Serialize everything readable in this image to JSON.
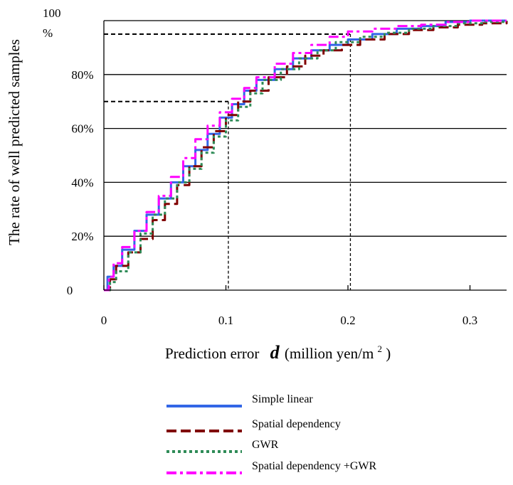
{
  "chart_data": {
    "type": "line",
    "title": "",
    "xlabel_prefix": "Prediction error",
    "xlabel_symbol": "d",
    "xlabel_unit_open": "(million yen/m",
    "xlabel_unit_sup": "2",
    "xlabel_unit_close": ")",
    "ylabel": "The rate of well predicted samples",
    "xlim": [
      0,
      0.33
    ],
    "ylim": [
      0,
      100
    ],
    "x_ticks": [
      "0",
      "0.1",
      "0.2",
      "0.3"
    ],
    "y_ticks": [
      "0",
      "20%",
      "40%",
      "60%",
      "80%"
    ],
    "y_top_label": "100",
    "y_top_label_pct": "%",
    "grid": "horizontal",
    "legend_position": "below",
    "reference_lines": [
      {
        "x": 0.102,
        "y": 70
      },
      {
        "x": 0.202,
        "y": 95
      }
    ],
    "series": [
      {
        "name": "Simple linear",
        "color": "#3366e6",
        "style": "solid",
        "x": [
          0.0,
          0.003,
          0.008,
          0.015,
          0.025,
          0.035,
          0.045,
          0.055,
          0.065,
          0.075,
          0.085,
          0.095,
          0.105,
          0.115,
          0.125,
          0.14,
          0.155,
          0.17,
          0.185,
          0.2,
          0.22,
          0.24,
          0.26,
          0.28,
          0.3,
          0.33
        ],
        "y": [
          0,
          5,
          9,
          15,
          22,
          28,
          34,
          40,
          46,
          52,
          58,
          64,
          69,
          74,
          78,
          82,
          86,
          89,
          91,
          93,
          95,
          97,
          98,
          99.5,
          100,
          100
        ]
      },
      {
        "name": "Spatial dependency",
        "color": "#800000",
        "style": "dashed",
        "x": [
          0.0,
          0.005,
          0.01,
          0.02,
          0.03,
          0.04,
          0.05,
          0.06,
          0.07,
          0.08,
          0.09,
          0.1,
          0.11,
          0.12,
          0.135,
          0.15,
          0.165,
          0.18,
          0.195,
          0.21,
          0.23,
          0.25,
          0.27,
          0.29,
          0.31,
          0.33
        ],
        "y": [
          0,
          4,
          9,
          14,
          19,
          26,
          32,
          39,
          46,
          53,
          59,
          65,
          70,
          74,
          79,
          83,
          87,
          89,
          91,
          93,
          95,
          96.5,
          97.5,
          98.5,
          99,
          100
        ]
      },
      {
        "name": "GWR",
        "color": "#2e8b57",
        "style": "dotted",
        "x": [
          0.0,
          0.005,
          0.01,
          0.02,
          0.03,
          0.04,
          0.05,
          0.06,
          0.07,
          0.08,
          0.09,
          0.1,
          0.11,
          0.12,
          0.13,
          0.145,
          0.16,
          0.175,
          0.19,
          0.21,
          0.23,
          0.25,
          0.27,
          0.29,
          0.31,
          0.33
        ],
        "y": [
          0,
          3,
          7,
          14,
          21,
          28,
          34,
          40,
          45,
          51,
          57,
          63,
          68,
          73,
          78,
          82,
          86,
          89,
          92,
          94,
          95.5,
          97,
          98,
          99,
          99.5,
          100
        ]
      },
      {
        "name": "Spatial dependency +GWR",
        "color": "#ff00ff",
        "style": "dashdot",
        "x": [
          0.0,
          0.004,
          0.008,
          0.015,
          0.025,
          0.035,
          0.045,
          0.055,
          0.065,
          0.075,
          0.085,
          0.095,
          0.105,
          0.115,
          0.125,
          0.14,
          0.155,
          0.17,
          0.185,
          0.2,
          0.22,
          0.24,
          0.26,
          0.28,
          0.3,
          0.33
        ],
        "y": [
          0,
          5,
          10,
          16,
          22,
          29,
          35,
          42,
          49,
          56,
          61,
          66,
          71,
          75,
          79,
          84,
          88,
          91,
          94,
          96,
          97,
          98,
          98.5,
          99.5,
          100,
          100
        ]
      }
    ]
  }
}
